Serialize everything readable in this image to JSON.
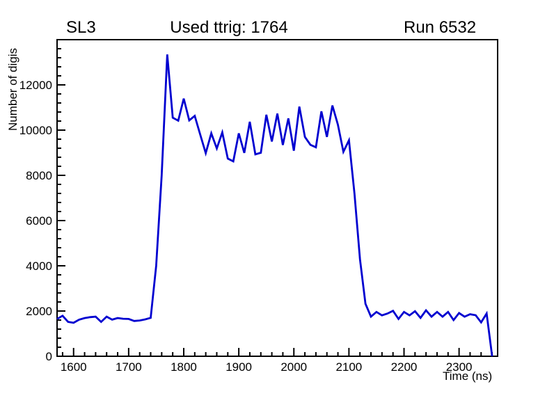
{
  "titles": {
    "left": "SL3",
    "center": "Used ttrig: 1764",
    "right": "Run 6532"
  },
  "chart_data": {
    "type": "line",
    "title": "Used ttrig: 1764",
    "xlabel": "Time (ns)",
    "ylabel": "Number of digis",
    "xlim": [
      1570,
      2370
    ],
    "ylim": [
      0,
      14000
    ],
    "x_major_ticks": [
      1600,
      1700,
      1800,
      1900,
      2000,
      2100,
      2200,
      2300
    ],
    "x_minor_step": 20,
    "y_major_ticks": [
      0,
      2000,
      4000,
      6000,
      8000,
      10000,
      12000
    ],
    "y_minor_step": 400,
    "grid": false,
    "legend": "none",
    "line_color": "#0000d0",
    "frame_color": "#000000",
    "background": "#ffffff",
    "x": [
      1570,
      1580,
      1590,
      1600,
      1610,
      1620,
      1630,
      1640,
      1650,
      1660,
      1670,
      1680,
      1690,
      1700,
      1710,
      1720,
      1730,
      1740,
      1750,
      1760,
      1770,
      1780,
      1790,
      1800,
      1810,
      1820,
      1830,
      1840,
      1850,
      1860,
      1870,
      1880,
      1890,
      1900,
      1910,
      1920,
      1930,
      1940,
      1950,
      1960,
      1970,
      1980,
      1990,
      2000,
      2010,
      2020,
      2030,
      2040,
      2050,
      2060,
      2070,
      2080,
      2090,
      2100,
      2110,
      2120,
      2130,
      2140,
      2150,
      2160,
      2170,
      2180,
      2190,
      2200,
      2210,
      2220,
      2230,
      2240,
      2250,
      2260,
      2270,
      2280,
      2290,
      2300,
      2310,
      2320,
      2330,
      2340,
      2350,
      2360
    ],
    "y": [
      1650,
      1790,
      1520,
      1480,
      1620,
      1690,
      1730,
      1750,
      1520,
      1750,
      1620,
      1690,
      1660,
      1650,
      1560,
      1580,
      1630,
      1700,
      4000,
      8000,
      13345,
      10550,
      10420,
      11395,
      10430,
      10630,
      9800,
      8980,
      9860,
      9190,
      9900,
      8740,
      8620,
      9860,
      8990,
      10370,
      8930,
      9000,
      10680,
      9500,
      10730,
      9340,
      10520,
      9090,
      11040,
      9700,
      9350,
      9240,
      10830,
      9700,
      11090,
      10240,
      9040,
      9550,
      7200,
      4300,
      2320,
      1750,
      1960,
      1810,
      1890,
      2010,
      1650,
      1960,
      1810,
      1990,
      1700,
      2030,
      1750,
      1960,
      1750,
      1960,
      1600,
      1910,
      1750,
      1860,
      1815,
      1500,
      1890,
      0
    ]
  }
}
